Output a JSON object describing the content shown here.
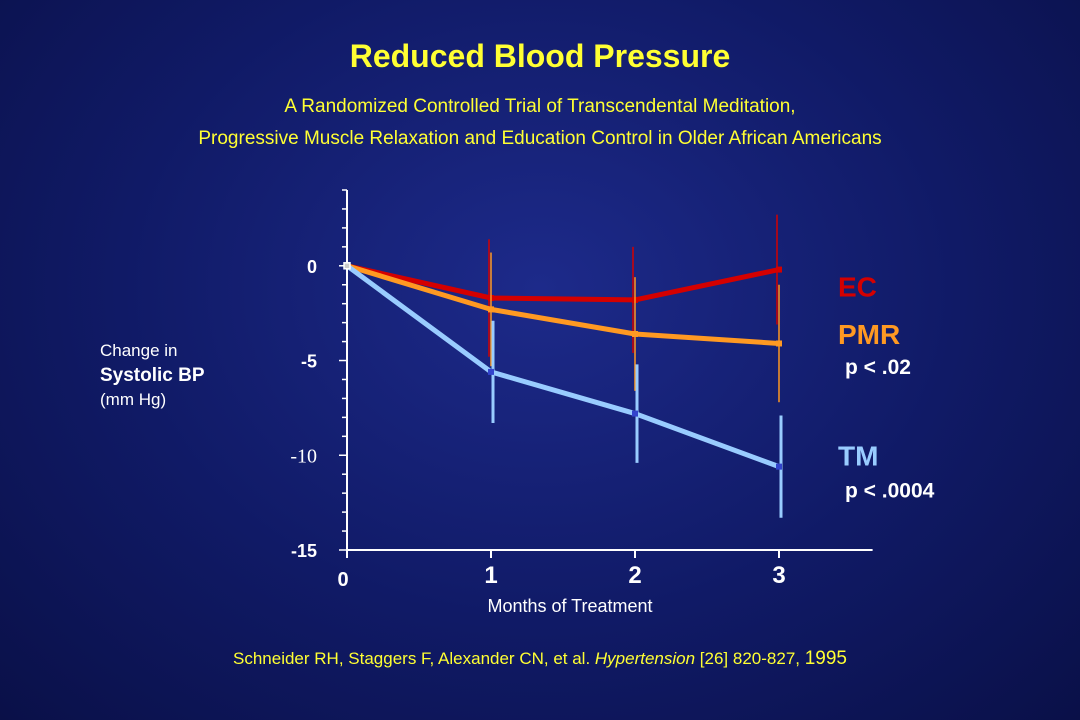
{
  "title": "Reduced Blood Pressure",
  "subtitle_line1": "A Randomized Controlled Trial of Transcendental Meditation,",
  "subtitle_line2": "Progressive Muscle Relaxation and Education Control in Older African Americans",
  "ylabel": {
    "line1": "Change in",
    "line2": "Systolic BP",
    "line3": "(mm Hg)"
  },
  "citation": {
    "authors": "Schneider RH, Staggers F,  Alexander CN, et al. ",
    "journal": "Hypertension",
    "details": " [26]  820-827, ",
    "year": "1995"
  },
  "colors": {
    "background": "#101a66",
    "text": "#ffffff",
    "title": "#ffff33",
    "EC": "#d40000",
    "PMR": "#ff9922",
    "TM": "#99ccff"
  },
  "chart_data": {
    "type": "line",
    "xlabel": "Months of Treatment",
    "ylabel": "Change in Systolic BP (mm Hg)",
    "x": [
      0,
      1,
      2,
      3
    ],
    "x_tick_labels": [
      "0",
      "1",
      "2",
      "3"
    ],
    "y_tick_values": [
      0,
      -5,
      -10,
      -15
    ],
    "y_tick_labels": [
      "0",
      "-5",
      "-10",
      "-15"
    ],
    "xlim": [
      0,
      3.65
    ],
    "ylim": [
      -15,
      4
    ],
    "grid": false,
    "series": [
      {
        "name": "EC",
        "color": "#d40000",
        "values": [
          0,
          -1.7,
          -1.8,
          -0.2
        ],
        "error": [
          0,
          3.1,
          2.8,
          2.9
        ],
        "stat": ""
      },
      {
        "name": "PMR",
        "color": "#ff9922",
        "values": [
          0,
          -2.3,
          -3.6,
          -4.1
        ],
        "error": [
          0,
          3.0,
          3.0,
          3.1
        ],
        "stat": "p < .02"
      },
      {
        "name": "TM",
        "color": "#99ccff",
        "values": [
          0,
          -5.6,
          -7.8,
          -10.6
        ],
        "error": [
          0,
          2.7,
          2.6,
          2.7
        ],
        "stat": "p < .0004"
      }
    ]
  }
}
